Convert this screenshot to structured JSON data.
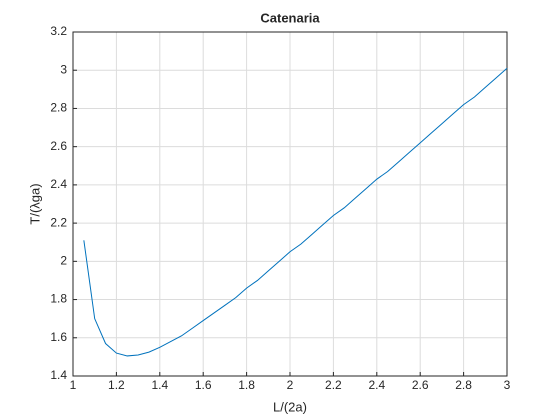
{
  "chart_data": {
    "type": "line",
    "title": "Catenaria",
    "x_label": "L/(2a)",
    "y_label": "T/(λga)",
    "x": [
      1.05,
      1.1,
      1.15,
      1.2,
      1.25,
      1.3,
      1.35,
      1.4,
      1.45,
      1.5,
      1.55,
      1.6,
      1.65,
      1.7,
      1.75,
      1.8,
      1.85,
      1.9,
      1.95,
      2.0,
      2.05,
      2.1,
      2.15,
      2.2,
      2.25,
      2.3,
      2.35,
      2.4,
      2.45,
      2.5,
      2.55,
      2.6,
      2.65,
      2.7,
      2.75,
      2.8,
      2.85,
      2.9,
      2.95,
      3.0
    ],
    "series": [
      {
        "color": "#0072bd",
        "values": [
          2.11,
          1.7,
          1.57,
          1.52,
          1.505,
          1.51,
          1.525,
          1.55,
          1.58,
          1.61,
          1.65,
          1.69,
          1.73,
          1.77,
          1.81,
          1.86,
          1.9,
          1.95,
          2.0,
          2.05,
          2.09,
          2.14,
          2.19,
          2.24,
          2.28,
          2.33,
          2.38,
          2.43,
          2.47,
          2.52,
          2.57,
          2.62,
          2.67,
          2.72,
          2.77,
          2.82,
          2.86,
          2.91,
          2.96,
          3.01
        ]
      }
    ],
    "xlim": [
      1,
      3
    ],
    "ylim": [
      1.4,
      3.2
    ],
    "xticks": [
      1,
      1.2,
      1.4,
      1.6,
      1.8,
      2,
      2.2,
      2.4,
      2.6,
      2.8,
      3
    ],
    "yticks": [
      1.4,
      1.6,
      1.8,
      2,
      2.2,
      2.4,
      2.6,
      2.8,
      3,
      3.2
    ],
    "grid": true
  }
}
